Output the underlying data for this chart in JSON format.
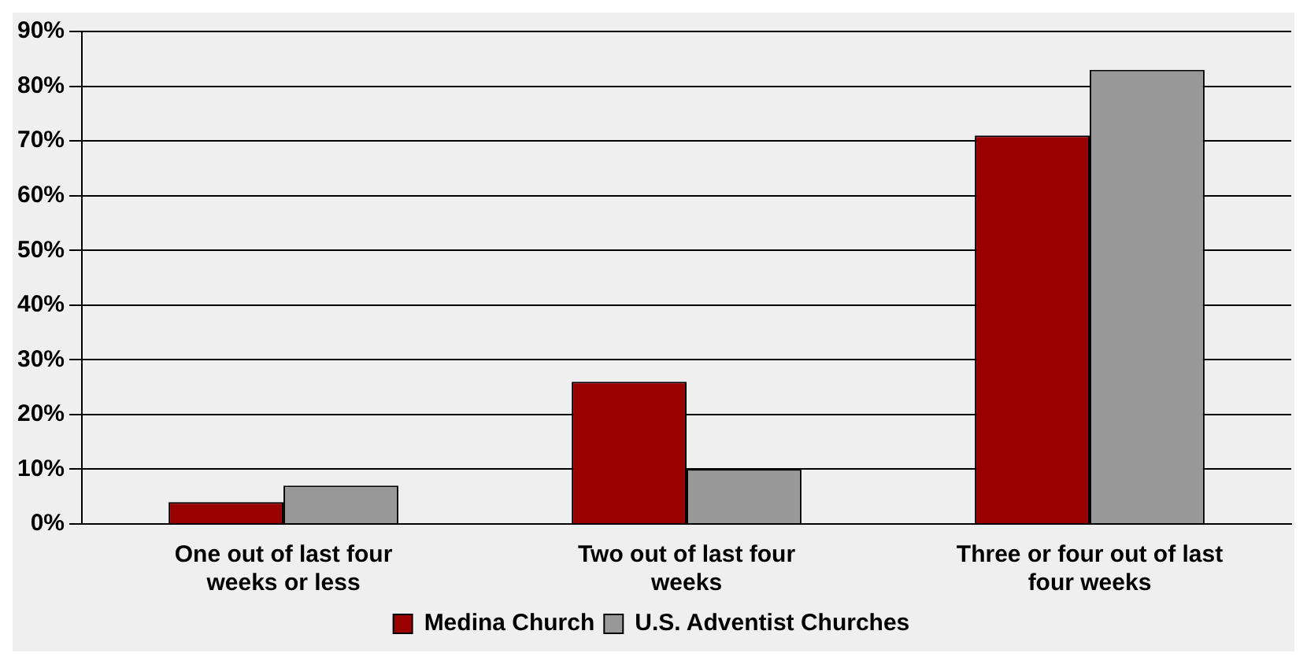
{
  "chart_data": {
    "type": "bar",
    "categories": [
      "One out of last four weeks or less",
      "Two out of last four weeks",
      "Three or four out of last four weeks"
    ],
    "series": [
      {
        "name": "Medina Church",
        "color": "#990000",
        "values": [
          4,
          26,
          71
        ]
      },
      {
        "name": "U.S. Adventist Churches",
        "color": "#999999",
        "values": [
          7,
          10,
          83
        ]
      }
    ],
    "ylim": [
      0,
      90
    ],
    "yticks": [
      {
        "value": 0,
        "label": "0%"
      },
      {
        "value": 10,
        "label": "10%"
      },
      {
        "value": 20,
        "label": "20%"
      },
      {
        "value": 30,
        "label": "30%"
      },
      {
        "value": 40,
        "label": "40%"
      },
      {
        "value": 50,
        "label": "50%"
      },
      {
        "value": 60,
        "label": "60%"
      },
      {
        "value": 70,
        "label": "70%"
      },
      {
        "value": 80,
        "label": "80%"
      },
      {
        "value": 90,
        "label": "90%"
      }
    ],
    "grid": "y",
    "legend": "bottom"
  }
}
